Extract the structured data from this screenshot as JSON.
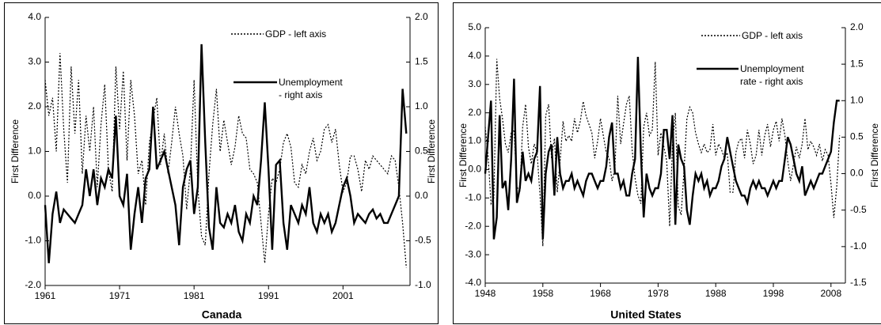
{
  "chart_data": [
    {
      "type": "line",
      "title": "Canada",
      "ylabel": "First Difference",
      "y2label": "First Difference",
      "xlim": [
        1961,
        2010
      ],
      "xticks": [
        1961,
        1971,
        1981,
        1991,
        2001
      ],
      "ylim": [
        -2,
        4
      ],
      "yticks": [
        {
          "value": -2,
          "label": "-2.0"
        },
        {
          "value": -1,
          "label": "-1.0"
        },
        {
          "value": 0,
          "label": "0.0"
        },
        {
          "value": 1,
          "label": "1.0"
        },
        {
          "value": 2,
          "label": "2.0"
        },
        {
          "value": 3,
          "label": "3.0"
        },
        {
          "value": 4,
          "label": "4.0"
        }
      ],
      "y2lim": [
        -1,
        2
      ],
      "y2ticks": [
        {
          "value": -1,
          "label": "-1.0"
        },
        {
          "value": -0.5,
          "label": "-0.5"
        },
        {
          "value": 0,
          "label": "0.0"
        },
        {
          "value": 0.5,
          "label": "0.5"
        },
        {
          "value": 1,
          "label": "1.0"
        },
        {
          "value": 1.5,
          "label": "1.5"
        },
        {
          "value": 2,
          "label": "2.0"
        }
      ],
      "x": [
        1961,
        1961.5,
        1962,
        1962.5,
        1963,
        1963.5,
        1964,
        1964.5,
        1965,
        1965.5,
        1966,
        1966.5,
        1967,
        1967.5,
        1968,
        1968.5,
        1969,
        1969.5,
        1970,
        1970.5,
        1971,
        1971.5,
        1972,
        1972.5,
        1973,
        1973.5,
        1974,
        1974.5,
        1975,
        1975.5,
        1976,
        1976.5,
        1977,
        1977.5,
        1978,
        1978.5,
        1979,
        1979.5,
        1980,
        1980.5,
        1981,
        1981.5,
        1982,
        1982.5,
        1983,
        1983.5,
        1984,
        1984.5,
        1985,
        1985.5,
        1986,
        1986.5,
        1987,
        1987.5,
        1988,
        1988.5,
        1989,
        1989.5,
        1990,
        1990.5,
        1991,
        1991.5,
        1992,
        1992.5,
        1993,
        1993.5,
        1994,
        1994.5,
        1995,
        1995.5,
        1996,
        1996.5,
        1997,
        1997.5,
        1998,
        1998.5,
        1999,
        1999.5,
        2000,
        2000.5,
        2001,
        2001.5,
        2002,
        2002.5,
        2003,
        2003.5,
        2004,
        2004.5,
        2005,
        2005.5,
        2006,
        2006.5,
        2007,
        2007.5,
        2008,
        2008.5,
        2009,
        2009.5
      ],
      "series": [
        {
          "name": "GDP - left axis",
          "color": "#000000",
          "style": "dotted",
          "axis": "y",
          "values": [
            2.6,
            1.8,
            2.2,
            1.0,
            3.2,
            1.5,
            0.3,
            2.9,
            1.4,
            2.6,
            0.5,
            1.8,
            1.0,
            2.0,
            0.2,
            1.6,
            2.5,
            0.6,
            0.1,
            2.9,
            1.5,
            2.8,
            0.8,
            2.6,
            1.8,
            0.5,
            0.8,
            -0.2,
            1.2,
            1.7,
            2.2,
            0.7,
            1.4,
            0.5,
            1.2,
            2.0,
            1.4,
            0.9,
            -0.3,
            0.6,
            2.6,
            0.2,
            -0.9,
            -1.1,
            0.5,
            1.6,
            2.4,
            1.0,
            1.7,
            1.2,
            0.7,
            1.1,
            1.8,
            1.4,
            1.3,
            0.6,
            0.5,
            0.3,
            -0.6,
            -1.5,
            -0.4,
            0.4,
            0.3,
            0.6,
            1.2,
            1.4,
            1.1,
            0.3,
            0.2,
            0.7,
            0.5,
            1.0,
            1.3,
            0.8,
            1.0,
            1.5,
            1.6,
            1.2,
            1.5,
            0.7,
            0.1,
            0.3,
            0.9,
            0.9,
            0.6,
            0.1,
            0.8,
            0.6,
            0.9,
            0.8,
            0.7,
            0.6,
            0.5,
            0.9,
            0.8,
            0.2,
            -0.6,
            -1.6
          ]
        },
        {
          "name": "Unemployment\n- right axis",
          "color": "#000000",
          "style": "solid",
          "axis": "y2",
          "values": [
            -0.1,
            -0.75,
            -0.2,
            0.05,
            -0.3,
            -0.15,
            -0.2,
            -0.25,
            -0.3,
            -0.2,
            -0.1,
            0.3,
            0.0,
            0.3,
            -0.1,
            0.2,
            0.1,
            0.3,
            0.2,
            0.9,
            0.0,
            -0.1,
            0.25,
            -0.6,
            -0.2,
            0.1,
            -0.3,
            0.2,
            0.3,
            1.0,
            0.3,
            0.4,
            0.5,
            0.3,
            0.1,
            -0.1,
            -0.55,
            0.1,
            0.3,
            0.4,
            -0.2,
            0.1,
            1.7,
            0.6,
            -0.35,
            -0.6,
            0.1,
            -0.3,
            -0.35,
            -0.2,
            -0.3,
            -0.1,
            -0.4,
            -0.5,
            -0.2,
            -0.3,
            0.0,
            -0.1,
            0.4,
            1.05,
            0.3,
            -0.6,
            0.35,
            0.4,
            -0.3,
            -0.6,
            -0.1,
            -0.2,
            -0.3,
            -0.1,
            -0.2,
            0.1,
            -0.3,
            -0.4,
            -0.2,
            -0.3,
            -0.2,
            -0.4,
            -0.3,
            -0.1,
            0.1,
            0.2,
            0.0,
            -0.3,
            -0.2,
            -0.25,
            -0.3,
            -0.2,
            -0.15,
            -0.25,
            -0.2,
            -0.3,
            -0.3,
            -0.2,
            -0.1,
            0.0,
            1.2,
            0.7
          ]
        }
      ]
    },
    {
      "type": "line",
      "title": "United States",
      "ylabel": "First Difference",
      "y2label": "First Difference",
      "xlim": [
        1948,
        2010.5
      ],
      "xticks": [
        1948,
        1958,
        1968,
        1978,
        1988,
        1998,
        2008
      ],
      "ylim": [
        -4,
        5
      ],
      "yticks": [
        {
          "value": -4,
          "label": "-4.0"
        },
        {
          "value": -3,
          "label": "-3.0"
        },
        {
          "value": -2,
          "label": "-2.0"
        },
        {
          "value": -1,
          "label": "-1.0"
        },
        {
          "value": 0,
          "label": "0.0"
        },
        {
          "value": 1,
          "label": "1.0"
        },
        {
          "value": 2,
          "label": "2.0"
        },
        {
          "value": 3,
          "label": "3.0"
        },
        {
          "value": 4,
          "label": "4.0"
        },
        {
          "value": 5,
          "label": "5.0"
        }
      ],
      "y2lim": [
        -1.5,
        2
      ],
      "y2ticks": [
        {
          "value": -1.5,
          "label": "-1.5"
        },
        {
          "value": -1,
          "label": "-1.0"
        },
        {
          "value": -0.5,
          "label": "-0.5"
        },
        {
          "value": 0,
          "label": "0.0"
        },
        {
          "value": 0.5,
          "label": "0.5"
        },
        {
          "value": 1,
          "label": "1.0"
        },
        {
          "value": 1.5,
          "label": "1.5"
        },
        {
          "value": 2,
          "label": "2.0"
        }
      ],
      "x": [
        1948,
        1948.5,
        1949,
        1949.5,
        1950,
        1950.5,
        1951,
        1951.5,
        1952,
        1952.5,
        1953,
        1953.5,
        1954,
        1954.5,
        1955,
        1955.5,
        1956,
        1956.5,
        1957,
        1957.5,
        1958,
        1958.5,
        1959,
        1959.5,
        1960,
        1960.5,
        1961,
        1961.5,
        1962,
        1962.5,
        1963,
        1963.5,
        1964,
        1964.5,
        1965,
        1965.5,
        1966,
        1966.5,
        1967,
        1967.5,
        1968,
        1968.5,
        1969,
        1969.5,
        1970,
        1970.5,
        1971,
        1971.5,
        1972,
        1972.5,
        1973,
        1973.5,
        1974,
        1974.5,
        1975,
        1975.5,
        1976,
        1976.5,
        1977,
        1977.5,
        1978,
        1978.5,
        1979,
        1979.5,
        1980,
        1980.5,
        1981,
        1981.5,
        1982,
        1982.5,
        1983,
        1983.5,
        1984,
        1984.5,
        1985,
        1985.5,
        1986,
        1986.5,
        1987,
        1987.5,
        1988,
        1988.5,
        1989,
        1989.5,
        1990,
        1990.5,
        1991,
        1991.5,
        1992,
        1992.5,
        1993,
        1993.5,
        1994,
        1994.5,
        1995,
        1995.5,
        1996,
        1996.5,
        1997,
        1997.5,
        1998,
        1998.5,
        1999,
        1999.5,
        2000,
        2000.5,
        2001,
        2001.5,
        2002,
        2002.5,
        2003,
        2003.5,
        2004,
        2004.5,
        2005,
        2005.5,
        2006,
        2006.5,
        2007,
        2007.5,
        2008,
        2008.5,
        2009,
        2009.5
      ],
      "series": [
        {
          "name": "GDP - left axis",
          "color": "#000000",
          "style": "dotted",
          "axis": "y",
          "values": [
            1.5,
            0.5,
            -1.2,
            -1.0,
            3.9,
            2.5,
            1.8,
            0.9,
            0.6,
            1.3,
            1.4,
            -0.6,
            -0.8,
            1.5,
            2.3,
            0.8,
            0.2,
            0.9,
            0.6,
            -0.9,
            -2.7,
            1.9,
            2.3,
            0.4,
            1.1,
            -0.8,
            0.3,
            1.7,
            1.0,
            1.2,
            1.0,
            1.8,
            1.3,
            1.7,
            2.4,
            1.9,
            1.6,
            1.3,
            0.4,
            1.0,
            1.8,
            1.2,
            0.6,
            0.4,
            -0.4,
            0.0,
            2.6,
            0.9,
            1.6,
            2.3,
            2.6,
            0.7,
            -0.3,
            -0.9,
            -1.2,
            1.5,
            2.0,
            1.2,
            1.4,
            3.8,
            0.5,
            1.3,
            0.8,
            0.3,
            -2.0,
            0.9,
            2.0,
            -1.3,
            -1.6,
            0.0,
            1.8,
            2.2,
            2.0,
            1.3,
            0.9,
            0.6,
            0.9,
            0.6,
            0.7,
            1.6,
            0.5,
            0.9,
            0.7,
            0.4,
            0.6,
            -0.8,
            -0.8,
            0.6,
            1.0,
            1.1,
            0.4,
            1.4,
            0.9,
            0.2,
            0.5,
            1.4,
            0.5,
            1.2,
            1.6,
            0.8,
            1.4,
            1.7,
            1.0,
            1.8,
            1.2,
            0.3,
            -0.4,
            0.2,
            0.8,
            0.4,
            0.9,
            1.8,
            0.7,
            1.0,
            0.8,
            0.5,
            0.9,
            0.3,
            0.7,
            0.5,
            -0.5,
            -1.7,
            -0.6,
            1.2
          ]
        },
        {
          "name": "Unemployment\nrate - right axis",
          "color": "#000000",
          "style": "solid",
          "axis": "y2",
          "values": [
            0.0,
            0.5,
            1.0,
            -0.9,
            -0.6,
            0.8,
            -0.2,
            -0.1,
            -0.5,
            0.2,
            1.3,
            -0.4,
            -0.2,
            0.3,
            -0.1,
            0.0,
            -0.1,
            0.2,
            0.3,
            1.2,
            -0.9,
            0.0,
            0.3,
            0.4,
            -0.3,
            0.5,
            0.0,
            -0.2,
            -0.1,
            -0.1,
            0.0,
            -0.2,
            -0.1,
            -0.2,
            -0.3,
            -0.1,
            0.0,
            0.0,
            -0.1,
            -0.2,
            -0.1,
            -0.1,
            0.1,
            0.5,
            0.7,
            0.0,
            0.0,
            -0.2,
            -0.1,
            -0.3,
            -0.3,
            0.0,
            0.2,
            1.6,
            0.3,
            -0.6,
            0.0,
            -0.2,
            -0.3,
            -0.2,
            -0.2,
            0.0,
            0.6,
            0.6,
            0.2,
            0.8,
            -0.7,
            0.4,
            0.2,
            0.1,
            -0.5,
            -0.7,
            -0.3,
            0.0,
            -0.1,
            0.0,
            -0.2,
            -0.1,
            -0.3,
            -0.2,
            -0.2,
            -0.1,
            0.1,
            0.2,
            0.5,
            0.3,
            0.1,
            -0.1,
            -0.2,
            -0.3,
            -0.3,
            -0.4,
            -0.2,
            -0.1,
            -0.2,
            -0.1,
            -0.2,
            -0.2,
            -0.3,
            -0.2,
            -0.1,
            -0.2,
            -0.1,
            -0.1,
            0.2,
            0.5,
            0.4,
            0.2,
            0.0,
            -0.1,
            0.1,
            -0.3,
            -0.2,
            -0.1,
            -0.2,
            -0.1,
            0.0,
            0.0,
            0.1,
            0.2,
            0.3,
            0.7,
            1.0,
            1.0
          ]
        }
      ]
    }
  ]
}
